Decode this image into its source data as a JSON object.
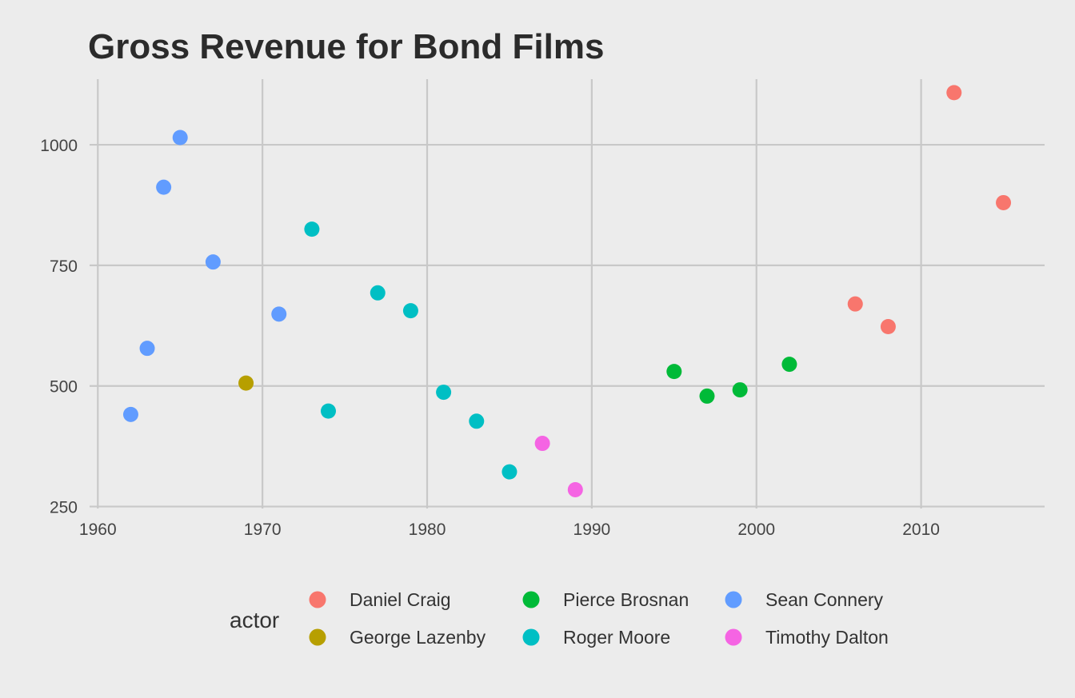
{
  "chart_data": {
    "type": "scatter",
    "title": "Gross Revenue for Bond Films",
    "xlabel": "",
    "ylabel": "",
    "xlim": [
      1959.5,
      2017.5
    ],
    "ylim": [
      246,
      1136
    ],
    "x_ticks": [
      1960,
      1970,
      1980,
      1990,
      2000,
      2010
    ],
    "y_ticks": [
      250,
      500,
      750,
      1000
    ],
    "grid": true,
    "legend": {
      "title": "actor",
      "position": "bottom"
    },
    "series": [
      {
        "name": "Daniel Craig",
        "color": "#f8766d",
        "points": [
          [
            2006,
            670
          ],
          [
            2008,
            623
          ],
          [
            2012,
            1108
          ],
          [
            2015,
            880
          ]
        ]
      },
      {
        "name": "George Lazenby",
        "color": "#b79f00",
        "points": [
          [
            1969,
            506
          ]
        ]
      },
      {
        "name": "Pierce Brosnan",
        "color": "#00ba38",
        "points": [
          [
            1995,
            530
          ],
          [
            1997,
            479
          ],
          [
            1999,
            492
          ],
          [
            2002,
            545
          ]
        ]
      },
      {
        "name": "Roger Moore",
        "color": "#00bfc4",
        "points": [
          [
            1973,
            825
          ],
          [
            1974,
            448
          ],
          [
            1977,
            693
          ],
          [
            1979,
            656
          ],
          [
            1981,
            487
          ],
          [
            1983,
            427
          ],
          [
            1985,
            322
          ]
        ]
      },
      {
        "name": "Sean Connery",
        "color": "#619cff",
        "points": [
          [
            1962,
            441
          ],
          [
            1963,
            578
          ],
          [
            1964,
            912
          ],
          [
            1965,
            1015
          ],
          [
            1967,
            757
          ],
          [
            1971,
            649
          ]
        ]
      },
      {
        "name": "Timothy Dalton",
        "color": "#f564e3",
        "points": [
          [
            1987,
            381
          ],
          [
            1989,
            285
          ]
        ]
      }
    ]
  }
}
